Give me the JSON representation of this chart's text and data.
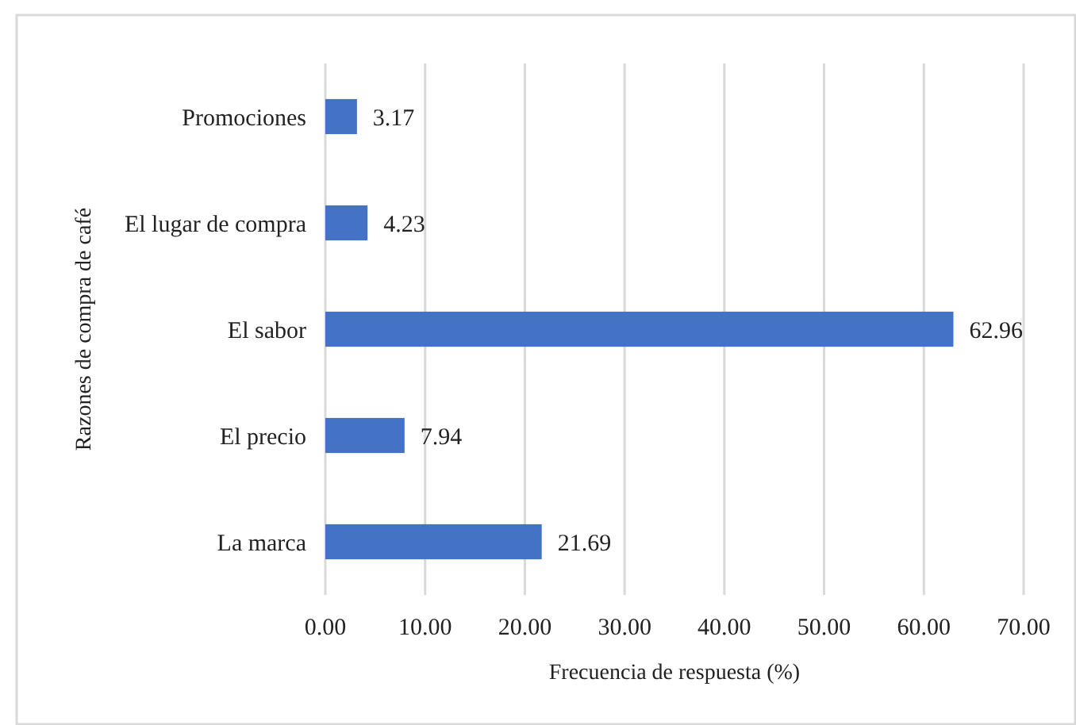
{
  "chart_data": {
    "type": "bar",
    "orientation": "horizontal",
    "categories": [
      "Promociones",
      "El lugar de compra",
      "El sabor",
      "El precio",
      "La marca"
    ],
    "values": [
      3.17,
      4.23,
      62.96,
      7.94,
      21.69
    ],
    "color": "#4472c4",
    "xlabel": "Frecuencia de respuesta (%)",
    "ylabel": "Razones de compra de café",
    "xlim": [
      0,
      70
    ],
    "xticks": [
      {
        "value": 0,
        "label": "0.00"
      },
      {
        "value": 10,
        "label": "10.00"
      },
      {
        "value": 20,
        "label": "20.00"
      },
      {
        "value": 30,
        "label": "30.00"
      },
      {
        "value": 40,
        "label": "40.00"
      },
      {
        "value": 50,
        "label": "50.00"
      },
      {
        "value": 60,
        "label": "60.00"
      },
      {
        "value": 70,
        "label": "70.00"
      }
    ],
    "grid": "x",
    "data_labels": true
  }
}
